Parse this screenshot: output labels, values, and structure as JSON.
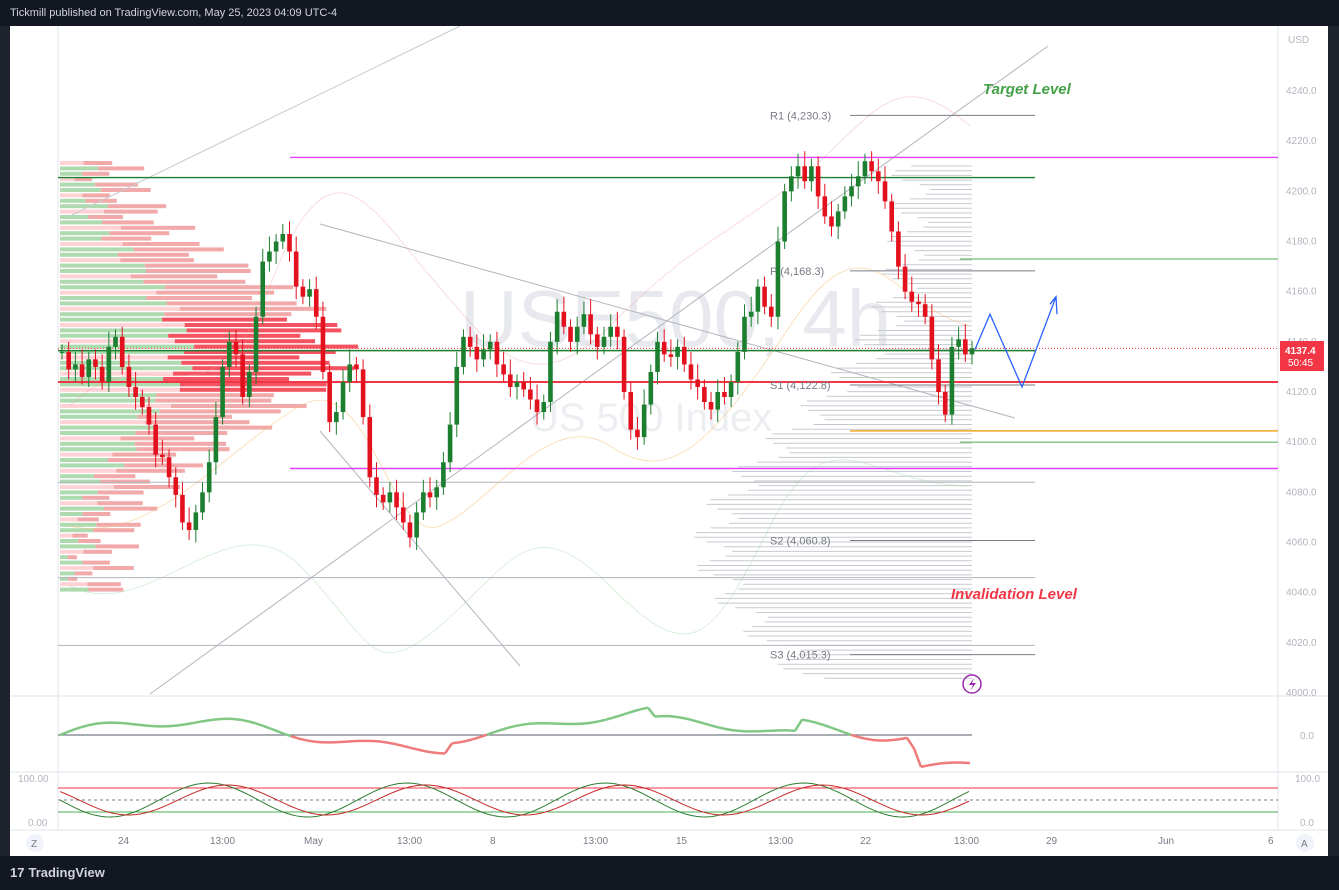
{
  "header": {
    "published_by": "Tickmill published on TradingView.com, May 25, 2023 04:09 UTC-4"
  },
  "footer": {
    "brand": "TradingView",
    "logo_glyph": "17"
  },
  "chart_data": {
    "type": "candlestick",
    "symbol_watermark": "USE500, 4h",
    "symbol_subtitle": "US 500 Index",
    "currency": "USD",
    "price_axis": {
      "ticks": [
        4240,
        4220,
        4200,
        4180,
        4160,
        4140,
        4120,
        4100,
        4080,
        4060,
        4040,
        4020,
        4000
      ],
      "ylim": [
        4000,
        4240
      ]
    },
    "time_axis": {
      "labels": [
        "24",
        "13:00",
        "May",
        "13:00",
        "8",
        "13:00",
        "15",
        "13:00",
        "22",
        "13:00",
        "29",
        "Jun",
        "6"
      ]
    },
    "last_price": {
      "value": "4137.4",
      "countdown": "50:45",
      "color": "#f23645"
    },
    "pivots": [
      {
        "label": "R1 (4,230.3)",
        "value": 4230.3
      },
      {
        "label": "P (4,168.3)",
        "value": 4168.3
      },
      {
        "label": "S1 (4,122.8)",
        "value": 4122.8
      },
      {
        "label": "S2 (4,060.8)",
        "value": 4060.8
      },
      {
        "label": "S3 (4,015.3)",
        "value": 4015.3
      }
    ],
    "horizontal_levels": [
      {
        "value": 4213.5,
        "color": "#e040fb"
      },
      {
        "value": 4205.5,
        "color": "#1b7f2f"
      },
      {
        "value": 4136.5,
        "color": "#1b7f2f"
      },
      {
        "value": 4124.0,
        "color": "#f23645"
      },
      {
        "value": 4089.5,
        "color": "#e040fb"
      },
      {
        "value": 4104.5,
        "color": "#f5a623"
      }
    ],
    "annotations": [
      {
        "text": "Target Level",
        "color": "#43a047"
      },
      {
        "text": "Invalidation Level",
        "color": "#f23645"
      }
    ],
    "candles": [
      4136,
      4129,
      4131,
      4126,
      4133,
      4130,
      4124,
      4138,
      4142,
      4130,
      4122,
      4118,
      4114,
      4107,
      4095,
      4094,
      4086,
      4079,
      4068,
      4065,
      4072,
      4080,
      4092,
      4110,
      4130,
      4140,
      4135,
      4118,
      4128,
      4150,
      4172,
      4176,
      4180,
      4183,
      4176,
      4162,
      4158,
      4161,
      4150,
      4128,
      4108,
      4112,
      4124,
      4131,
      4129,
      4110,
      4086,
      4079,
      4076,
      4080,
      4074,
      4068,
      4062,
      4072,
      4080,
      4078,
      4082,
      4092,
      4107,
      4130,
      4142,
      4138,
      4133,
      4137,
      4140,
      4131,
      4127,
      4122,
      4124,
      4121,
      4117,
      4112,
      4116,
      4140,
      4152,
      4146,
      4140,
      4146,
      4151,
      4143,
      4138,
      4142,
      4146,
      4142,
      4120,
      4105,
      4102,
      4115,
      4128,
      4140,
      4135,
      4134,
      4138,
      4131,
      4125,
      4122,
      4116,
      4113,
      4120,
      4118,
      4124,
      4136,
      4150,
      4152,
      4162,
      4154,
      4150,
      4180,
      4200,
      4206,
      4210,
      4204,
      4210,
      4198,
      4190,
      4186,
      4192,
      4198,
      4202,
      4206,
      4212,
      4208,
      4204,
      4196,
      4184,
      4170,
      4160,
      4156,
      4155,
      4150,
      4133,
      4120,
      4111,
      4138,
      4141,
      4135,
      4137.4
    ],
    "oscillator_1": {
      "zero_label": "0.0"
    },
    "oscillator_2": {
      "top_label": "100.00",
      "bottom_label": "0.00",
      "right_top": "100.0",
      "right_bottom": "0.0"
    }
  },
  "axis_buttons": {
    "left": "Z",
    "right": "A"
  }
}
